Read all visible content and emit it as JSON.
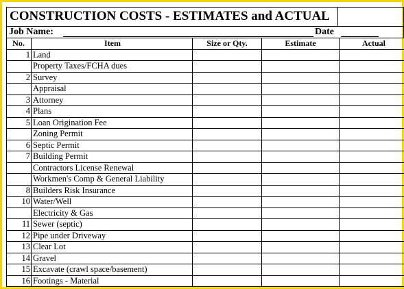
{
  "header": {
    "title": "CONSTRUCTION COSTS - ESTIMATES and ACTUAL",
    "job_label": "Job Name:",
    "date_label": "Date"
  },
  "columns": [
    "No.",
    "Item",
    "Size or Qty.",
    "Estimate",
    "Actual"
  ],
  "rows": [
    {
      "no": "1",
      "item": "Land"
    },
    {
      "no": "",
      "item": "Property Taxes/FCHA dues"
    },
    {
      "no": "2",
      "item": "Survey"
    },
    {
      "no": "",
      "item": "Appraisal"
    },
    {
      "no": "3",
      "item": "Attorney"
    },
    {
      "no": "4",
      "item": "Plans"
    },
    {
      "no": "5",
      "item": "Loan Origination Fee"
    },
    {
      "no": "",
      "item": "Zoning Permit"
    },
    {
      "no": "6",
      "item": "Septic Permit"
    },
    {
      "no": "7",
      "item": "Building Permit"
    },
    {
      "no": "",
      "item": "Contractors License Renewal"
    },
    {
      "no": "",
      "item": "Workmen's Comp & General Liability"
    },
    {
      "no": "8",
      "item": "Builders Risk Insurance"
    },
    {
      "no": "10",
      "item": "Water/Well"
    },
    {
      "no": "",
      "item": "Electricity & Gas"
    },
    {
      "no": "11",
      "item": "Sewer (septic)"
    },
    {
      "no": "12",
      "item": "Pipe under Driveway"
    },
    {
      "no": "13",
      "item": "Clear Lot"
    },
    {
      "no": "14",
      "item": "Gravel"
    },
    {
      "no": "15",
      "item": "Excavate (crawl space/basement)"
    },
    {
      "no": "16",
      "item": "Footings - Material"
    }
  ],
  "colors": {
    "frame": "#f3d60a"
  }
}
